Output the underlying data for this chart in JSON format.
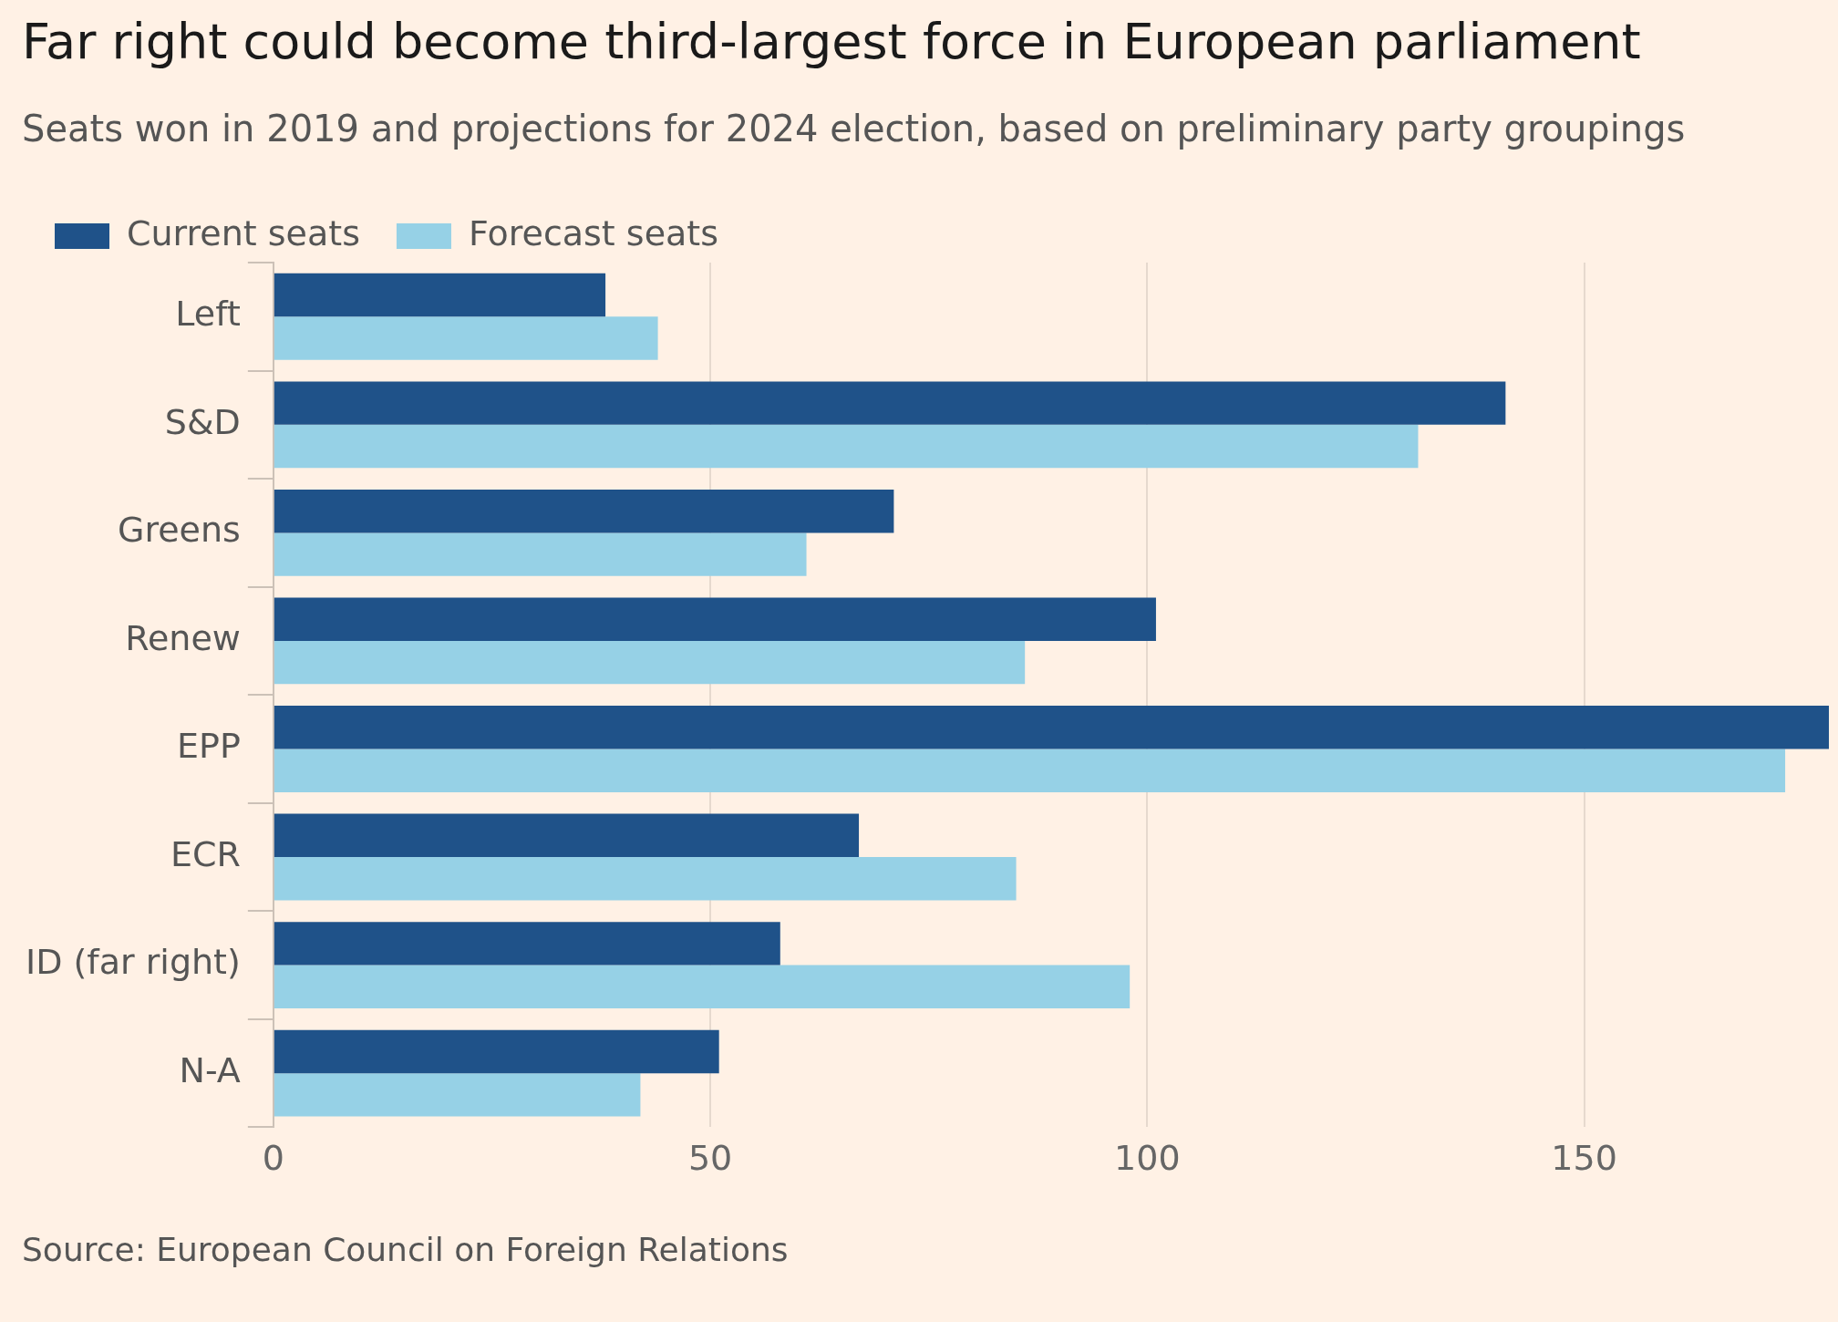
{
  "chart_data": {
    "type": "bar",
    "orientation": "horizontal",
    "title": "Far right could become third-largest force in European parliament",
    "subtitle": "Seats won in 2019 and projections for 2024 election, based on preliminary party groupings",
    "categories": [
      "Left",
      "S&D",
      "Greens",
      "Renew",
      "EPP",
      "ECR",
      "ID (far right)",
      "N-A"
    ],
    "series": [
      {
        "name": "Current seats",
        "color": "#1f5289",
        "values": [
          38,
          141,
          71,
          101,
          178,
          67,
          58,
          51
        ]
      },
      {
        "name": "Forecast seats",
        "color": "#96d1e6",
        "values": [
          44,
          131,
          61,
          86,
          173,
          85,
          98,
          42
        ]
      }
    ],
    "xlim": [
      0,
      178
    ],
    "xticks": [
      0,
      50,
      100,
      150
    ],
    "grid": "x",
    "legend": "top left",
    "annotations": [
      "Source: European Council on Foreign Relations"
    ]
  }
}
